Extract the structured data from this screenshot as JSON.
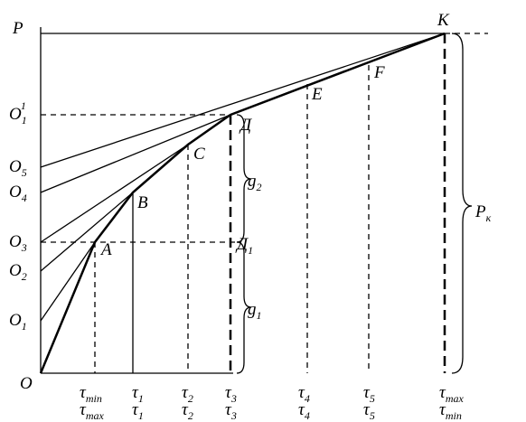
{
  "axis": {
    "y_label": "P",
    "origin": "O"
  },
  "left_labels": [
    {
      "main": "O",
      "sub": "1"
    },
    {
      "main": "O",
      "sub": "2"
    },
    {
      "main": "O",
      "sub": "3"
    },
    {
      "main": "O",
      "sub": "4"
    },
    {
      "main": "O",
      "sub": "5"
    },
    {
      "main": "O",
      "sub": "1",
      "sup": "1"
    }
  ],
  "points": [
    "A",
    "B",
    "C",
    "Д",
    "E",
    "F",
    "K"
  ],
  "d1": {
    "main": "Д",
    "sub": "1"
  },
  "braces": {
    "g1": {
      "main": "g",
      "sub": "1"
    },
    "g2": {
      "main": "g",
      "sub": "2"
    },
    "pk": {
      "main": "P",
      "sub": "к"
    }
  },
  "bottom_labels": [
    {
      "top": {
        "main": "τ",
        "sub": "min"
      },
      "bottom": {
        "main": "τ",
        "sub": "max"
      }
    },
    {
      "top": {
        "main": "τ",
        "sub": "1"
      },
      "bottom": {
        "main": "τ",
        "sub": "1"
      }
    },
    {
      "top": {
        "main": "τ",
        "sub": "2"
      },
      "bottom": {
        "main": "τ",
        "sub": "2"
      }
    },
    {
      "top": {
        "main": "τ",
        "sub": "3"
      },
      "bottom": {
        "main": "τ",
        "sub": "3"
      }
    },
    {
      "top": {
        "main": "τ",
        "sub": "4"
      },
      "bottom": {
        "main": "τ",
        "sub": "4"
      }
    },
    {
      "top": {
        "main": "τ",
        "sub": "5"
      },
      "bottom": {
        "main": "τ",
        "sub": "5"
      }
    },
    {
      "top": {
        "main": "τ",
        "sub": "max"
      },
      "bottom": {
        "main": "τ",
        "sub": "min"
      }
    }
  ]
}
